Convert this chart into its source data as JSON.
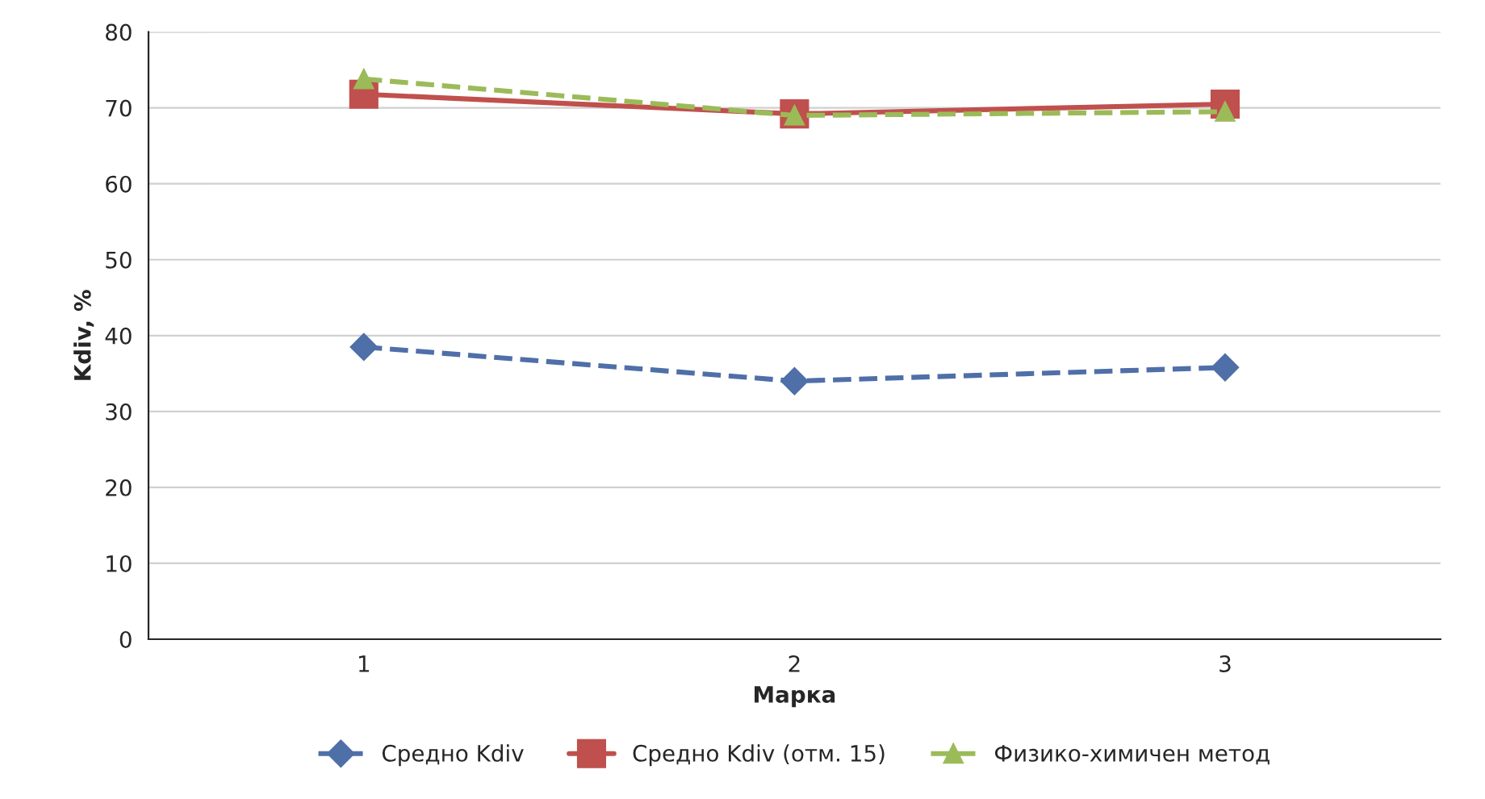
{
  "chart_data": {
    "type": "line",
    "xlabel": "Марка",
    "ylabel": "Kdiv, %",
    "categories": [
      "1",
      "2",
      "3"
    ],
    "ylim": [
      0,
      80
    ],
    "yticks": [
      0,
      10,
      20,
      30,
      40,
      50,
      60,
      70,
      80
    ],
    "grid": "y",
    "legend": "bottom",
    "series": [
      {
        "name": "Средно Kdiv",
        "color": "#4f6fa8",
        "values": [
          38.5,
          34,
          35.8
        ],
        "marker": "diamond",
        "line_style": "dashed"
      },
      {
        "name": "Средно Kdiv (отм. 15)",
        "color": "#c0504d",
        "values": [
          71.8,
          69.2,
          70.5
        ],
        "marker": "square",
        "line_style": "solid"
      },
      {
        "name": "Физико-химичен метод",
        "color": "#9bbb59",
        "values": [
          73.8,
          69,
          69.5
        ],
        "marker": "triangle",
        "line_style": "dashed"
      }
    ]
  }
}
